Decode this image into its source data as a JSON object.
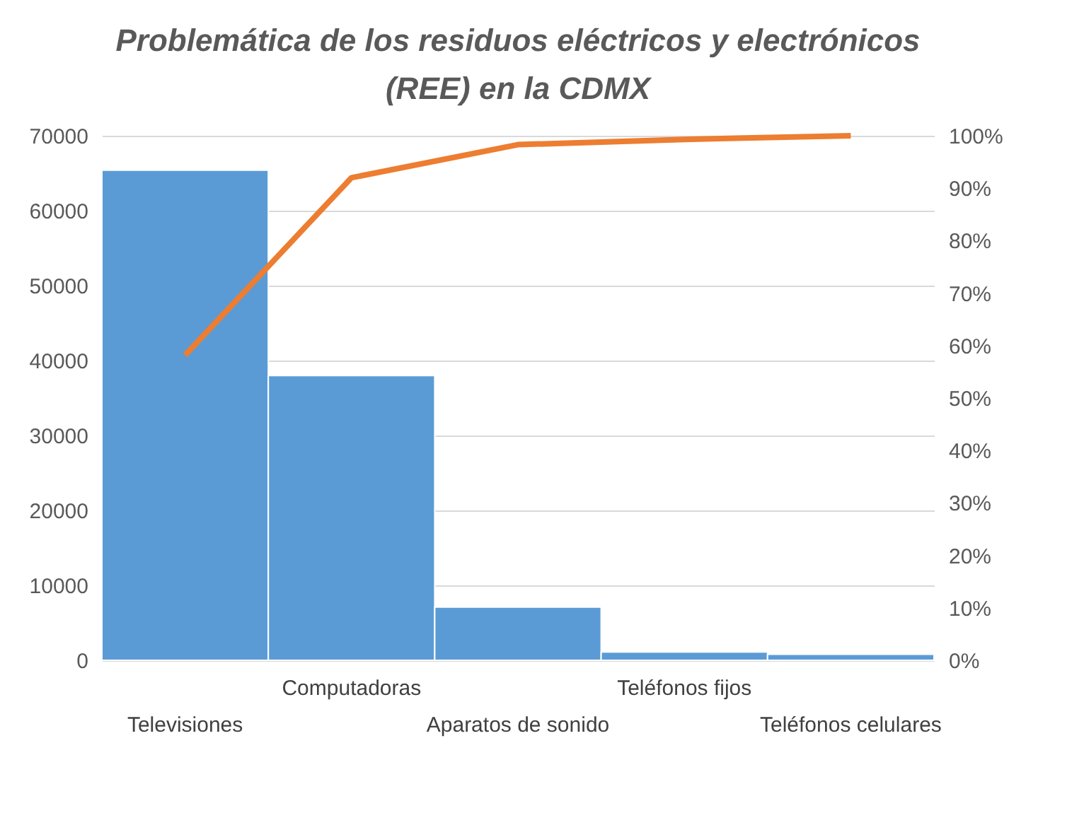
{
  "chart_data": {
    "type": "bar",
    "title": "Problemática de los residuos eléctricos y electrónicos (REE) en la CDMX",
    "categories": [
      "Televisiones",
      "Computadoras",
      "Aparatos de sonido",
      "Teléfonos fijos",
      "Teléfonos celulares"
    ],
    "series": [
      {
        "color": "#5b9bd5",
        "values": [
          65400,
          38000,
          7100,
          1100,
          800
        ]
      },
      {
        "type": "line",
        "axis": "y2",
        "color": "#ed7d31",
        "values": [
          58.2,
          92,
          98.3,
          99.3,
          100
        ]
      }
    ],
    "ylim": [
      0,
      70000
    ],
    "yticks": [
      0,
      10000,
      20000,
      30000,
      40000,
      50000,
      60000,
      70000
    ],
    "y2lim": [
      0,
      100
    ],
    "y2ticks": [
      {
        "value": 0,
        "label": "0%"
      },
      {
        "value": 10,
        "label": "10%"
      },
      {
        "value": 20,
        "label": "20%"
      },
      {
        "value": 30,
        "label": "30%"
      },
      {
        "value": 40,
        "label": "40%"
      },
      {
        "value": 50,
        "label": "50%"
      },
      {
        "value": 60,
        "label": "60%"
      },
      {
        "value": 70,
        "label": "70%"
      },
      {
        "value": 80,
        "label": "80%"
      },
      {
        "value": 90,
        "label": "90%"
      },
      {
        "value": 100,
        "label": "100%"
      }
    ],
    "grid": "y",
    "marker": "none",
    "line_style": "solid"
  }
}
